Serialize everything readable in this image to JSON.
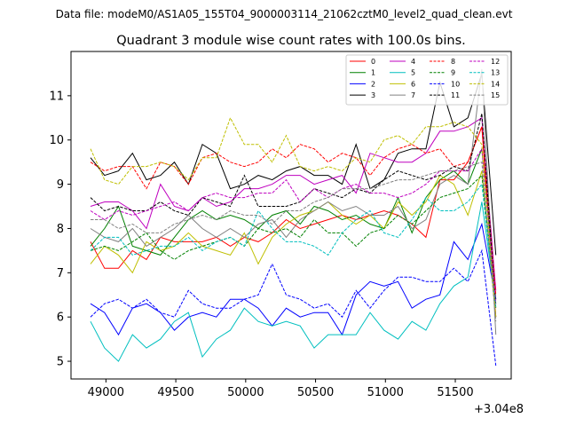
{
  "chart_data": {
    "type": "line",
    "suptitle": "Data file: modeM0/AS1A05_155T04_9000003114_21062cztM0_level2_quad_clean.evt",
    "title": "Quadrant 3 module wise count rates with 100.0s bins.",
    "xlabel": "",
    "ylabel": "",
    "x_offset_label": "+3.04e8",
    "xlim": [
      48750,
      51900
    ],
    "ylim": [
      4.6,
      12.0
    ],
    "xticks": [
      49000,
      49500,
      50000,
      50500,
      51000,
      51500
    ],
    "yticks": [
      5,
      6,
      7,
      8,
      9,
      10,
      11
    ],
    "legend_position": "top-right",
    "x": [
      48890,
      48990,
      49090,
      49190,
      49290,
      49390,
      49490,
      49590,
      49690,
      49790,
      49890,
      49990,
      50090,
      50190,
      50290,
      50390,
      50490,
      50590,
      50690,
      50790,
      50890,
      50990,
      51090,
      51190,
      51290,
      51390,
      51490,
      51590,
      51690,
      51790
    ],
    "series": [
      {
        "name": "0",
        "color": "#ff0000",
        "dash": "solid",
        "values": [
          7.7,
          7.1,
          7.1,
          7.5,
          7.3,
          7.8,
          7.7,
          7.7,
          7.7,
          7.8,
          7.6,
          7.8,
          7.7,
          7.9,
          8.2,
          8.0,
          8.1,
          8.2,
          8.3,
          8.2,
          8.3,
          8.4,
          8.3,
          8.1,
          7.8,
          9.1,
          9.1,
          9.5,
          10.3,
          6.0
        ]
      },
      {
        "name": "1",
        "color": "#008000",
        "dash": "solid",
        "values": [
          7.6,
          8.0,
          8.5,
          7.6,
          7.5,
          7.4,
          7.8,
          8.2,
          8.4,
          8.2,
          8.3,
          8.2,
          8.0,
          8.3,
          8.4,
          8.1,
          8.5,
          8.4,
          8.2,
          8.3,
          8.1,
          8.0,
          8.7,
          7.9,
          8.7,
          9.1,
          9.3,
          9.0,
          9.8,
          6.4
        ]
      },
      {
        "name": "2",
        "color": "#0000ff",
        "dash": "solid",
        "values": [
          6.3,
          6.1,
          5.6,
          6.2,
          6.3,
          6.1,
          5.7,
          6.0,
          6.1,
          6.0,
          6.4,
          6.4,
          6.2,
          5.8,
          6.2,
          6.0,
          6.1,
          6.1,
          5.6,
          6.5,
          6.8,
          6.7,
          6.8,
          6.2,
          6.4,
          6.5,
          7.7,
          7.3,
          8.1,
          6.4
        ]
      },
      {
        "name": "3",
        "color": "#000000",
        "dash": "solid",
        "values": [
          9.6,
          9.2,
          9.3,
          9.7,
          9.1,
          9.2,
          9.5,
          9.0,
          9.9,
          9.7,
          8.9,
          9.0,
          9.2,
          9.1,
          9.3,
          9.4,
          9.2,
          9.2,
          9.0,
          9.9,
          8.9,
          9.1,
          9.7,
          9.8,
          9.8,
          11.3,
          10.3,
          10.5,
          11.5,
          7.4
        ]
      },
      {
        "name": "4",
        "color": "#bf00bf",
        "dash": "solid",
        "values": [
          8.5,
          8.6,
          8.6,
          8.4,
          8.0,
          9.0,
          8.5,
          8.4,
          8.7,
          8.5,
          8.6,
          8.9,
          8.9,
          9.0,
          9.2,
          9.2,
          9.0,
          9.1,
          9.2,
          8.8,
          9.7,
          9.6,
          9.5,
          9.5,
          9.7,
          10.2,
          10.2,
          10.3,
          10.5,
          6.6
        ]
      },
      {
        "name": "5",
        "color": "#00bfbf",
        "dash": "solid",
        "values": [
          5.9,
          5.3,
          5.0,
          5.6,
          5.3,
          5.5,
          5.9,
          6.1,
          5.1,
          5.5,
          5.7,
          6.2,
          5.9,
          5.8,
          5.9,
          5.8,
          5.3,
          5.6,
          5.6,
          5.6,
          6.1,
          5.7,
          5.5,
          5.9,
          5.7,
          6.3,
          6.7,
          6.9,
          8.6,
          6.3
        ]
      },
      {
        "name": "6",
        "color": "#bfbf00",
        "dash": "solid",
        "values": [
          7.2,
          7.6,
          7.4,
          7.0,
          7.7,
          7.5,
          7.6,
          7.9,
          7.6,
          7.5,
          7.4,
          7.9,
          7.2,
          7.8,
          8.1,
          8.3,
          8.4,
          8.6,
          8.3,
          8.1,
          8.3,
          8.0,
          8.6,
          8.3,
          8.6,
          9.2,
          9.0,
          8.3,
          9.3,
          6.0
        ]
      },
      {
        "name": "7",
        "color": "#808080",
        "dash": "solid",
        "values": [
          8.0,
          7.8,
          7.7,
          8.0,
          7.6,
          7.8,
          8.0,
          8.3,
          8.0,
          7.8,
          8.0,
          7.8,
          8.1,
          8.2,
          7.8,
          8.2,
          8.4,
          8.6,
          8.4,
          8.5,
          8.3,
          8.3,
          8.5,
          8.0,
          8.2,
          9.0,
          9.2,
          9.0,
          11.6,
          5.6
        ]
      },
      {
        "name": "8",
        "color": "#ff0000",
        "dash": "dashed",
        "values": [
          9.5,
          9.3,
          9.4,
          9.4,
          8.9,
          9.5,
          9.4,
          9.0,
          9.6,
          9.7,
          9.5,
          9.4,
          9.5,
          9.8,
          9.6,
          9.9,
          9.8,
          9.5,
          9.7,
          9.6,
          9.2,
          9.6,
          9.8,
          9.9,
          9.7,
          9.8,
          9.4,
          9.5,
          10.3,
          6.5
        ]
      },
      {
        "name": "9",
        "color": "#008000",
        "dash": "dashed",
        "values": [
          7.5,
          7.6,
          7.5,
          7.7,
          7.9,
          7.5,
          7.3,
          7.5,
          7.6,
          7.7,
          7.8,
          7.6,
          8.0,
          7.9,
          8.0,
          7.8,
          8.2,
          7.9,
          7.9,
          7.6,
          7.9,
          8.0,
          8.3,
          8.1,
          8.4,
          8.7,
          8.8,
          8.9,
          9.2,
          6.3
        ]
      },
      {
        "name": "10",
        "color": "#0000ff",
        "dash": "dashed",
        "values": [
          6.0,
          6.3,
          6.4,
          6.2,
          6.4,
          6.1,
          6.0,
          6.6,
          6.3,
          6.2,
          6.2,
          6.4,
          6.5,
          7.2,
          6.5,
          6.4,
          6.2,
          6.3,
          6.0,
          6.6,
          6.2,
          6.6,
          6.9,
          6.9,
          6.8,
          6.8,
          7.1,
          6.8,
          7.5,
          4.9
        ]
      },
      {
        "name": "11",
        "color": "#000000",
        "dash": "dashed",
        "values": [
          8.7,
          8.4,
          8.5,
          8.4,
          8.4,
          8.6,
          8.4,
          8.3,
          8.7,
          8.6,
          8.5,
          9.2,
          8.5,
          8.5,
          8.5,
          8.6,
          8.9,
          8.8,
          8.7,
          8.9,
          8.8,
          9.1,
          9.3,
          9.2,
          9.1,
          9.2,
          9.4,
          9.3,
          10.6,
          6.2
        ]
      },
      {
        "name": "12",
        "color": "#bf00bf",
        "dash": "dashed",
        "values": [
          8.4,
          8.2,
          8.4,
          8.3,
          8.4,
          8.5,
          8.6,
          8.4,
          8.7,
          8.8,
          8.7,
          8.7,
          8.8,
          8.8,
          9.1,
          8.6,
          8.9,
          8.7,
          8.9,
          9.0,
          8.8,
          8.8,
          8.7,
          8.8,
          9.0,
          9.3,
          9.3,
          9.3,
          9.8,
          6.3
        ]
      },
      {
        "name": "13",
        "color": "#00bfbf",
        "dash": "dashed",
        "values": [
          7.5,
          7.8,
          7.8,
          7.4,
          7.5,
          7.6,
          7.6,
          7.8,
          7.5,
          7.7,
          7.8,
          7.6,
          8.4,
          8.0,
          7.7,
          7.7,
          7.6,
          7.4,
          7.9,
          8.2,
          8.4,
          7.9,
          7.8,
          8.2,
          8.7,
          8.4,
          8.4,
          8.6,
          9.0,
          6.2
        ]
      },
      {
        "name": "14",
        "color": "#bfbf00",
        "dash": "dashed",
        "values": [
          9.8,
          9.1,
          9.0,
          9.4,
          9.4,
          9.5,
          9.4,
          9.1,
          9.6,
          9.6,
          10.5,
          9.9,
          9.9,
          9.5,
          10.1,
          9.4,
          9.3,
          9.4,
          9.3,
          9.6,
          9.5,
          10.0,
          10.1,
          9.9,
          10.3,
          10.3,
          10.4,
          10.3,
          9.9,
          6.0
        ]
      },
      {
        "name": "15",
        "color": "#808080",
        "dash": "dashed",
        "values": [
          8.2,
          8.2,
          8.0,
          8.1,
          7.9,
          7.9,
          8.1,
          8.2,
          8.3,
          8.2,
          8.4,
          8.3,
          8.3,
          8.1,
          8.4,
          8.4,
          8.6,
          8.7,
          8.9,
          8.9,
          8.9,
          9.0,
          9.1,
          9.1,
          9.2,
          9.3,
          9.3,
          9.4,
          9.5,
          5.9
        ]
      }
    ]
  }
}
